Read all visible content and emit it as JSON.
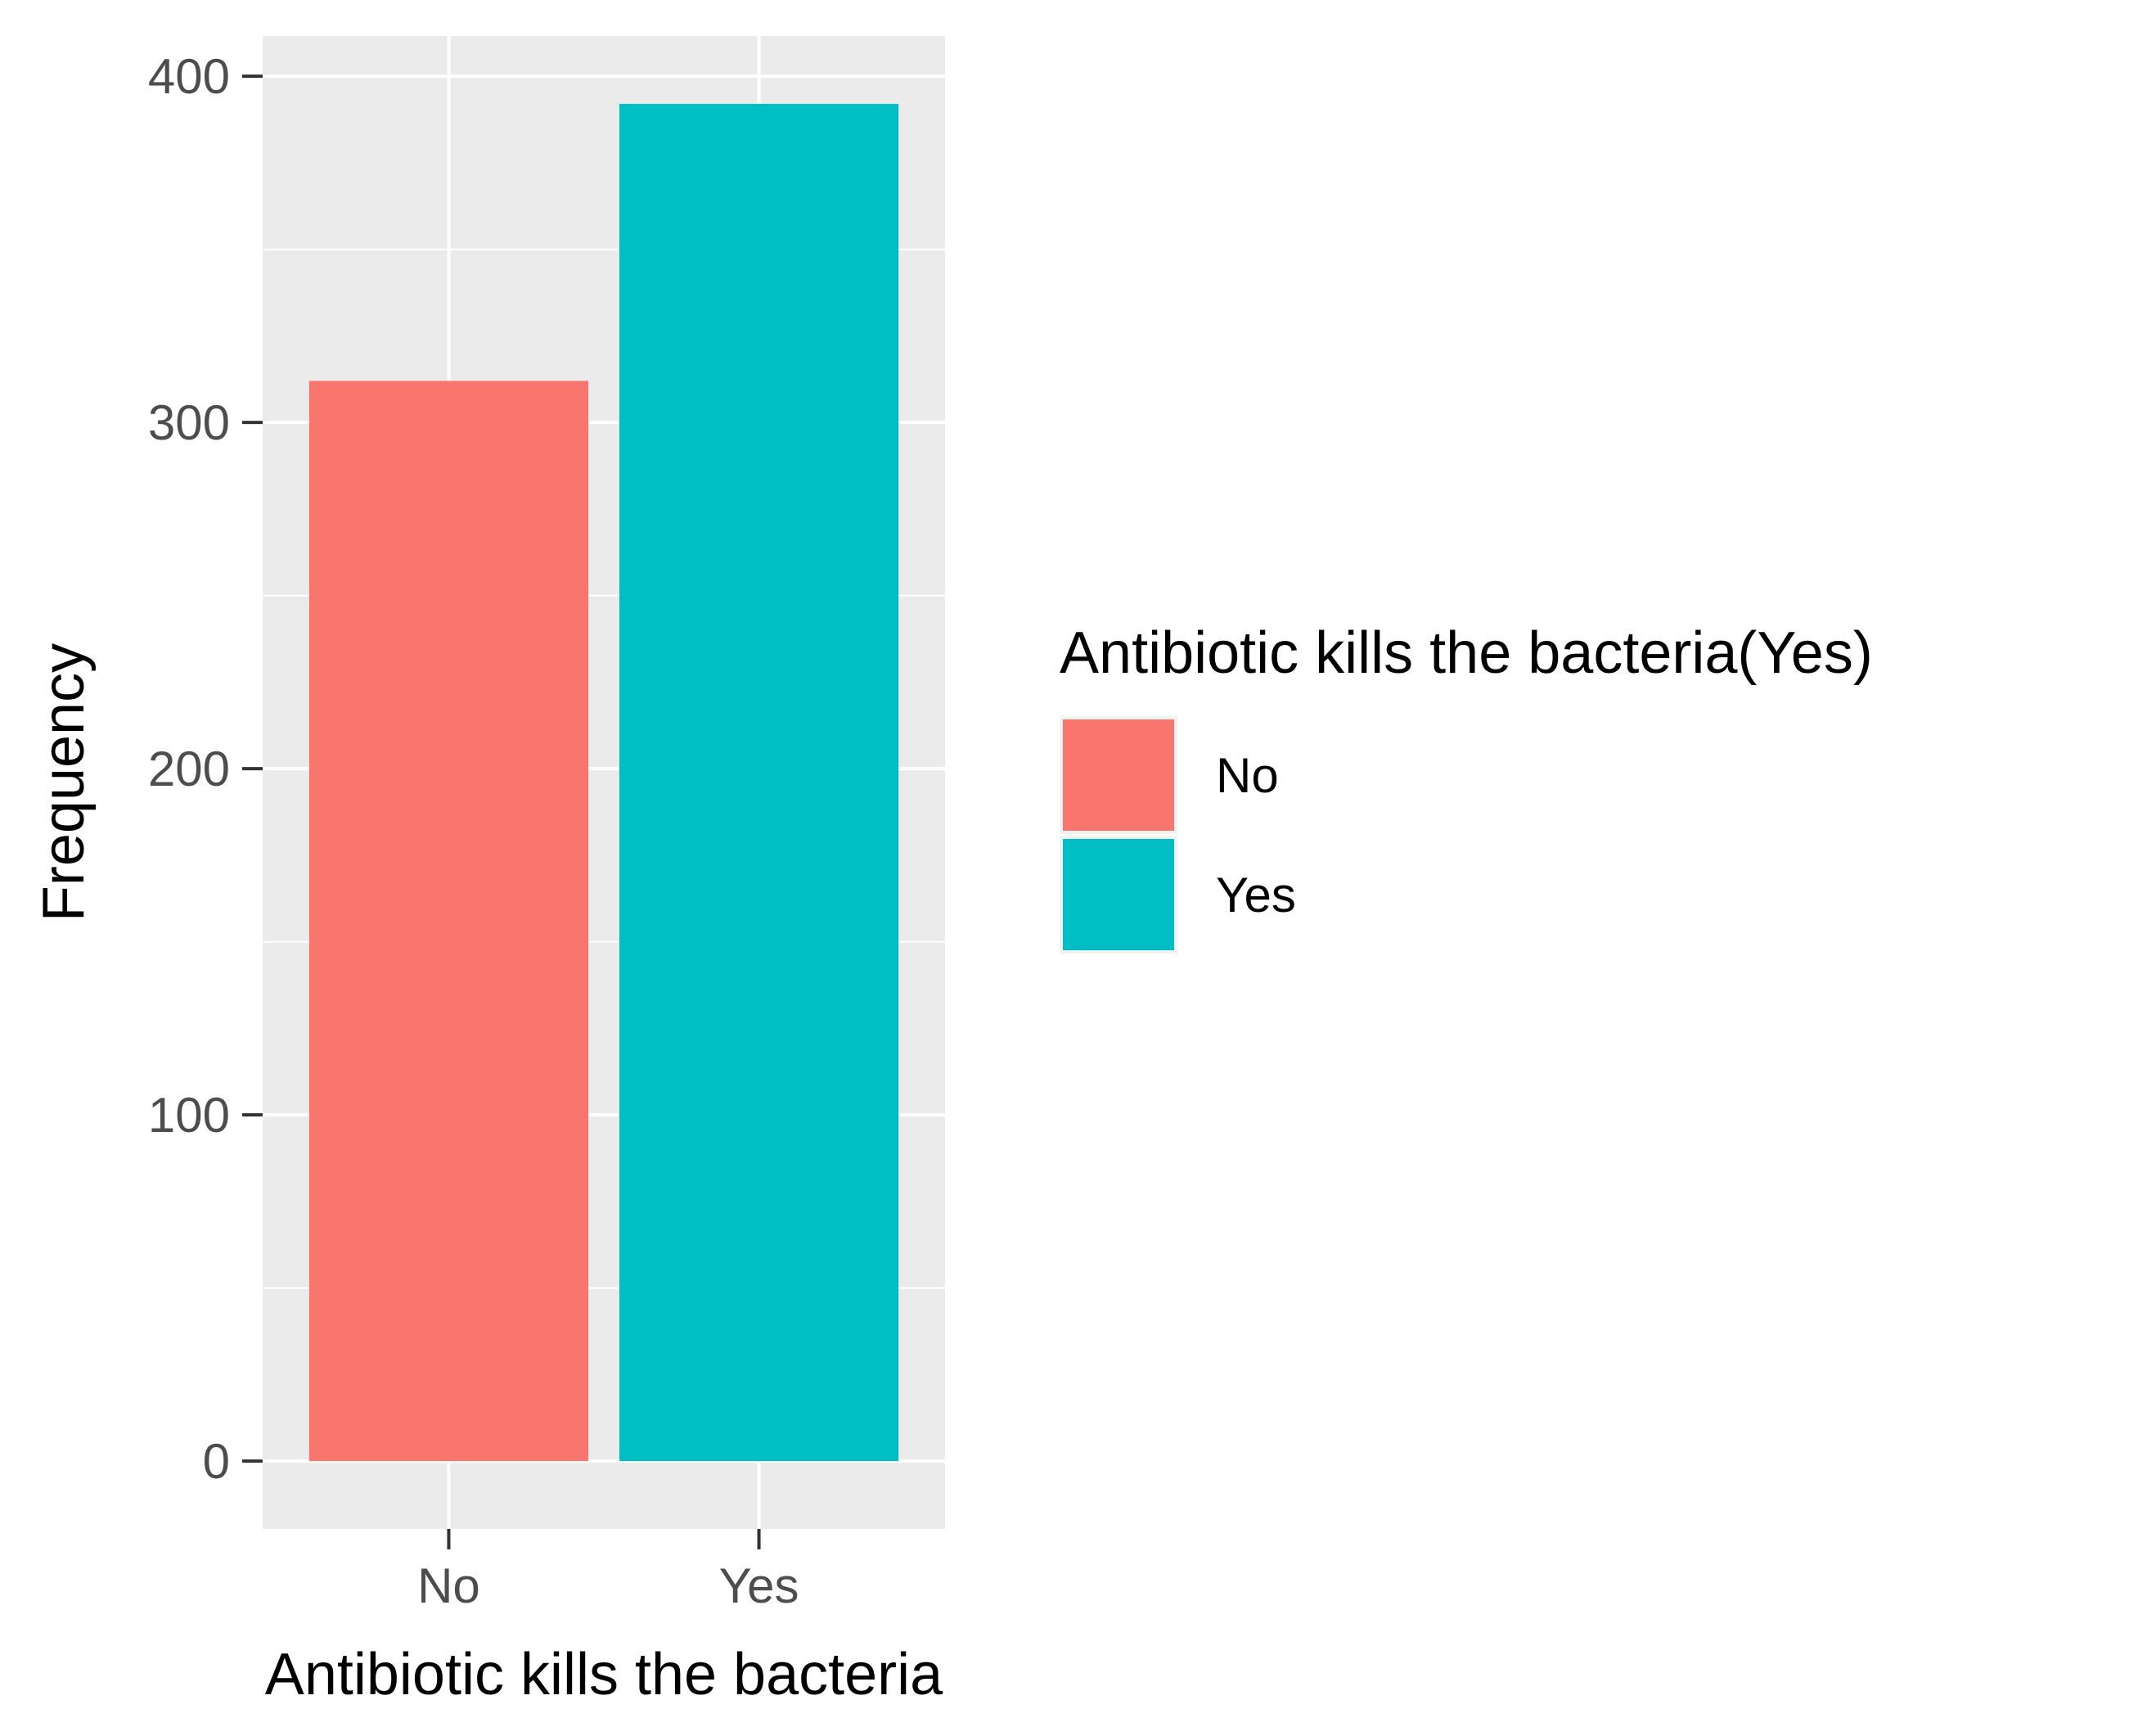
{
  "chart_data": {
    "type": "bar",
    "categories": [
      "No",
      "Yes"
    ],
    "values": [
      312,
      392
    ],
    "xlabel": "Antibiotic kills the bacteria",
    "ylabel": "Frequency",
    "ylim": [
      -19.6,
      411.6
    ],
    "yticks": [
      0,
      100,
      200,
      300,
      400
    ],
    "yminor": [
      50,
      150,
      250,
      350
    ],
    "grid": true,
    "legend": {
      "title": "Antibiotic kills the bacteria(Yes)",
      "placement": "right",
      "entries": [
        "No",
        "Yes"
      ]
    },
    "colors": {
      "No": "#F8766D",
      "Yes": "#00BFC4",
      "panel": "#EBEBEB",
      "grid": "#FFFFFF"
    }
  }
}
